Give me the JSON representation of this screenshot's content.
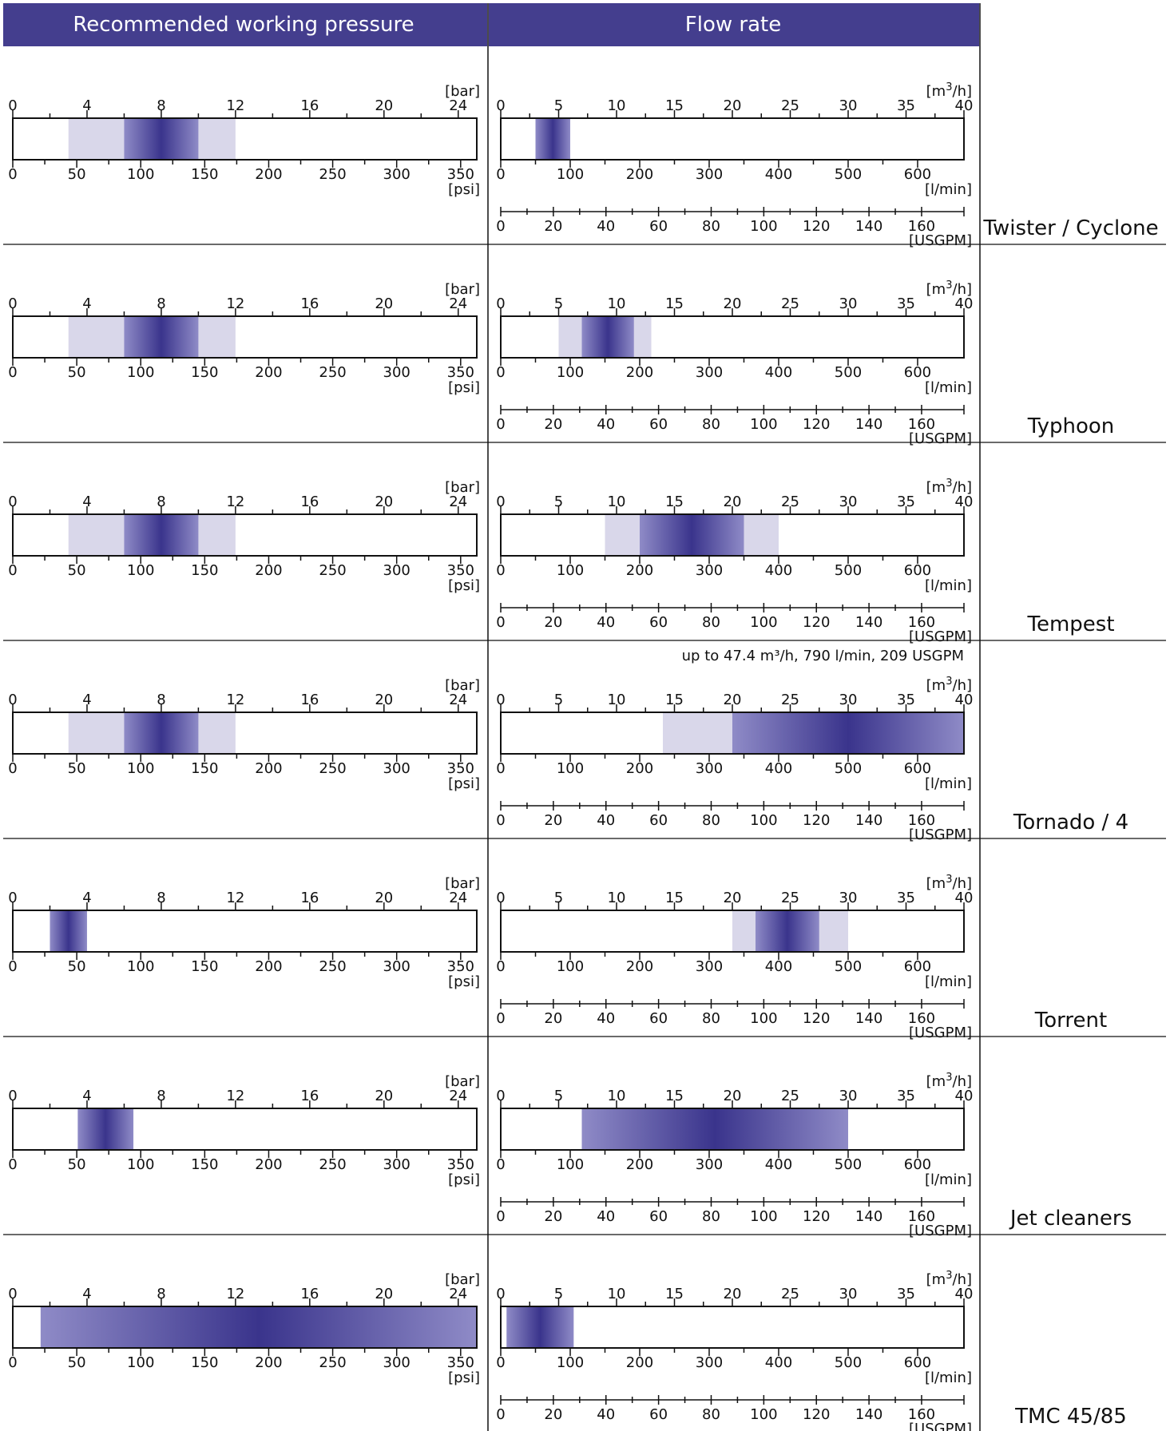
{
  "header": {
    "pressure_title": "Recommended working pressure",
    "flow_title": "Flow rate"
  },
  "colors": {
    "header_bg": "#443e8e",
    "range_light": "#d9d7ea",
    "range_gradient_edge": "#8f8bc7",
    "range_gradient_center": "#3a348c",
    "axis": "#111111"
  },
  "axes": {
    "bar": {
      "unit": "[bar]",
      "ticks": [
        "0",
        "4",
        "8",
        "12",
        "16",
        "20",
        "24"
      ],
      "range": [
        0,
        25
      ]
    },
    "psi": {
      "unit": "[psi]",
      "ticks": [
        "0",
        "50",
        "100",
        "150",
        "200",
        "250",
        "300",
        "350"
      ],
      "range": [
        0,
        362.6
      ]
    },
    "m3h": {
      "unit_base": "[m",
      "unit_sup": "3",
      "unit_tail": "/h]",
      "ticks": [
        "0",
        "5",
        "10",
        "15",
        "20",
        "25",
        "30",
        "35",
        "40"
      ],
      "range": [
        0,
        40
      ]
    },
    "lmin": {
      "unit": "[l/min]",
      "ticks": [
        "0",
        "100",
        "200",
        "300",
        "400",
        "500",
        "600"
      ],
      "range": [
        0,
        666.7
      ]
    },
    "usgpm": {
      "unit": "[USGPM]",
      "ticks": [
        "0",
        "20",
        "40",
        "60",
        "80",
        "100",
        "120",
        "140",
        "160"
      ],
      "range": [
        0,
        176.1
      ]
    }
  },
  "chart_data": {
    "type": "bar",
    "title": "",
    "rows": [
      {
        "name": "Twister / Cyclone",
        "pressure_bar": {
          "extended": [
            3,
            12
          ],
          "recommended": [
            6,
            10
          ]
        },
        "flow_m3h": {
          "recommended": [
            3,
            6
          ]
        },
        "note": ""
      },
      {
        "name": "Typhoon",
        "pressure_bar": {
          "extended": [
            3,
            12
          ],
          "recommended": [
            6,
            10
          ]
        },
        "flow_m3h": {
          "extended": [
            5,
            13
          ],
          "recommended": [
            7,
            11.5
          ]
        },
        "note": ""
      },
      {
        "name": "Tempest",
        "pressure_bar": {
          "extended": [
            3,
            12
          ],
          "recommended": [
            6,
            10
          ]
        },
        "flow_m3h": {
          "extended": [
            9,
            24
          ],
          "recommended": [
            12,
            21
          ]
        },
        "note": ""
      },
      {
        "name": "Tornado / 4",
        "pressure_bar": {
          "extended": [
            3,
            12
          ],
          "recommended": [
            6,
            10
          ]
        },
        "flow_m3h": {
          "extended": [
            14,
            20
          ],
          "recommended": [
            20,
            40
          ]
        },
        "note": "up to 47.4 m³/h, 790 l/min, 209 USGPM"
      },
      {
        "name": "Torrent",
        "pressure_bar": {
          "recommended": [
            2,
            4
          ]
        },
        "flow_m3h": {
          "extended": [
            20,
            30
          ],
          "recommended": [
            22,
            27.5
          ]
        },
        "note": ""
      },
      {
        "name": "Jet cleaners",
        "pressure_bar": {
          "recommended": [
            3.5,
            6.5
          ]
        },
        "flow_m3h": {
          "recommended": [
            7,
            30
          ]
        },
        "note": ""
      },
      {
        "name": "TMC 45/85",
        "pressure_bar": {
          "recommended": [
            1.5,
            25
          ]
        },
        "flow_m3h": {
          "recommended": [
            0.5,
            6.3
          ]
        },
        "note": ""
      }
    ]
  }
}
